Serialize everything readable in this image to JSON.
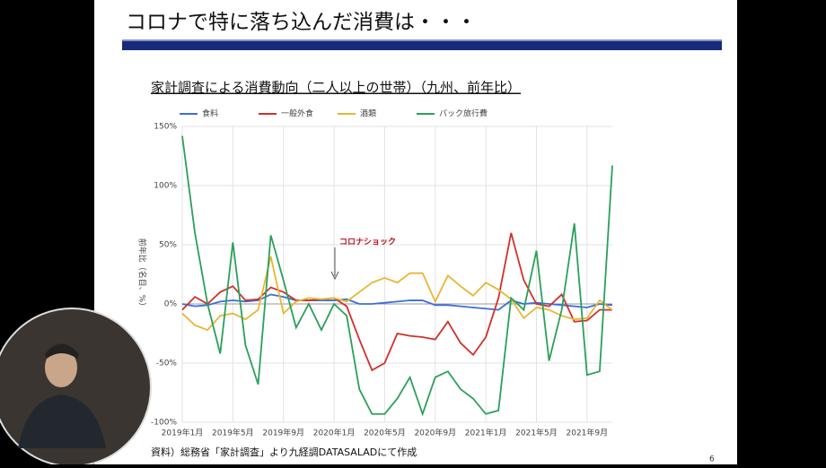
{
  "slide": {
    "title": "コロナで特に落ち込んだ消費は・・・",
    "source": "資料）総務省「家計調査」より九経調DATASALADにて作成",
    "page": "6"
  },
  "chart_data": {
    "type": "line",
    "title": "家計調査による消費動向（二人以上の世帯）（九州、前年比）",
    "y_label": "前年比（名目、%）",
    "annotation": "コロナショック",
    "categories": [
      "2019年1月",
      null,
      null,
      null,
      "2019年5月",
      null,
      null,
      null,
      "2019年9月",
      null,
      null,
      null,
      "2020年1月",
      null,
      null,
      null,
      "2020年5月",
      null,
      null,
      null,
      "2020年9月",
      null,
      null,
      null,
      "2021年1月",
      null,
      null,
      null,
      "2021年5月",
      null,
      null,
      null,
      "2021年9月",
      null,
      null
    ],
    "series": [
      {
        "name": "食料",
        "color": "#3b6fd6",
        "values": [
          0,
          -2,
          -1,
          2,
          3,
          2,
          3,
          8,
          6,
          3,
          3,
          3,
          3,
          4,
          0,
          0,
          1,
          2,
          3,
          3,
          -1,
          -1,
          -2,
          -3,
          -4,
          -5,
          3,
          0,
          1,
          0,
          -1,
          -2,
          -3,
          0,
          -1
        ]
      },
      {
        "name": "一般外食",
        "color": "#d0312d",
        "values": [
          -5,
          6,
          0,
          10,
          15,
          3,
          4,
          14,
          10,
          3,
          3,
          4,
          5,
          -2,
          -30,
          -56,
          -50,
          -25,
          -27,
          -28,
          -30,
          -15,
          -33,
          -43,
          -28,
          5,
          60,
          20,
          0,
          -2,
          8,
          -15,
          -14,
          -5,
          -5
        ]
      },
      {
        "name": "酒類",
        "color": "#e8b632",
        "values": [
          -8,
          -18,
          -22,
          -10,
          -8,
          -13,
          -5,
          40,
          -8,
          2,
          5,
          4,
          5,
          2,
          10,
          18,
          22,
          18,
          26,
          26,
          2,
          24,
          15,
          7,
          18,
          12,
          4,
          -12,
          -3,
          -5,
          -10,
          -13,
          -12,
          3,
          -5
        ]
      },
      {
        "name": "パック旅行費",
        "color": "#2aa05a",
        "values": [
          142,
          60,
          0,
          -42,
          52,
          -35,
          -68,
          58,
          20,
          -20,
          0,
          -22,
          0,
          -10,
          -72,
          -93,
          -93,
          -80,
          -62,
          -93,
          -62,
          -57,
          -72,
          -80,
          -93,
          -90,
          5,
          -5,
          45,
          -48,
          -5,
          68,
          -60,
          -57,
          117
        ]
      }
    ],
    "ylim": [
      -100,
      150
    ],
    "yticks": [
      {
        "value": -100,
        "label": "-100%"
      },
      {
        "value": -50,
        "label": "-50%"
      },
      {
        "value": 0,
        "label": "0%"
      },
      {
        "value": 50,
        "label": "50%"
      },
      {
        "value": 100,
        "label": "100%"
      },
      {
        "value": 150,
        "label": "150%"
      }
    ],
    "grid": true
  }
}
